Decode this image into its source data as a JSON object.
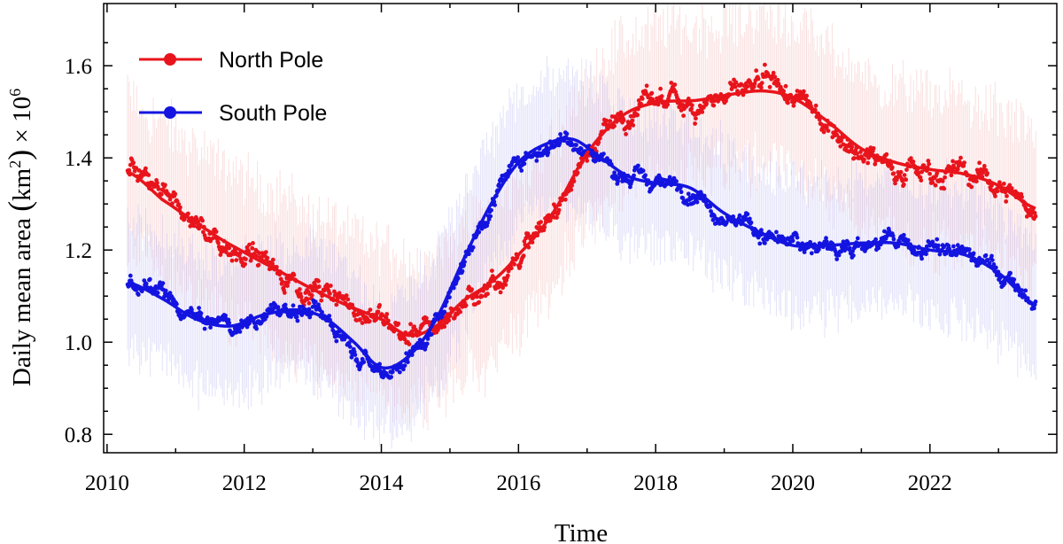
{
  "chart_data": {
    "type": "scatter",
    "title": "",
    "xlabel": "Time",
    "ylabel": {
      "prefix": "Daily mean area ",
      "lparen": "(",
      "unit": "km",
      "unit_sup": "2",
      "rparen": ")",
      "times": " × 10",
      "exp": "6"
    },
    "xlim": [
      2009.95,
      2023.85
    ],
    "ylim": [
      0.76,
      1.735
    ],
    "xticks": [
      2010,
      2012,
      2014,
      2016,
      2018,
      2020,
      2022
    ],
    "yticks": [
      0.8,
      1.0,
      1.2,
      1.4,
      1.6
    ],
    "ytick_labels": [
      "0.8",
      "1.0",
      "1.2",
      "1.4",
      "1.6"
    ],
    "legend_position": "top-left",
    "series": [
      {
        "name": "North Pole",
        "color": "#e8141c",
        "band_color": "#f2a0a0",
        "scatter_spread": 0.045,
        "band_halfwidth": 0.16,
        "smooth_x": [
          2010.3,
          2010.8,
          2011.5,
          2012.0,
          2012.5,
          2013.0,
          2013.5,
          2014.0,
          2014.4,
          2014.8,
          2015.2,
          2015.6,
          2016.0,
          2016.5,
          2017.0,
          2017.5,
          2018.0,
          2018.6,
          2019.2,
          2019.6,
          2020.0,
          2020.5,
          2021.0,
          2021.5,
          2022.0,
          2022.5,
          2023.0,
          2023.55
        ],
        "smooth_y": [
          1.37,
          1.31,
          1.24,
          1.195,
          1.155,
          1.115,
          1.08,
          1.05,
          1.015,
          1.035,
          1.09,
          1.13,
          1.19,
          1.28,
          1.41,
          1.49,
          1.52,
          1.525,
          1.54,
          1.545,
          1.53,
          1.48,
          1.42,
          1.39,
          1.375,
          1.365,
          1.34,
          1.29
        ]
      },
      {
        "name": "South Pole",
        "color": "#1414e0",
        "band_color": "#a8a8f0",
        "scatter_spread": 0.035,
        "band_halfwidth": 0.14,
        "smooth_x": [
          2010.3,
          2010.8,
          2011.3,
          2011.8,
          2012.3,
          2012.8,
          2013.2,
          2013.6,
          2014.0,
          2014.4,
          2014.8,
          2015.2,
          2015.6,
          2016.0,
          2016.4,
          2016.8,
          2017.2,
          2017.6,
          2018.0,
          2018.5,
          2019.0,
          2019.5,
          2020.0,
          2020.5,
          2021.0,
          2021.5,
          2022.0,
          2022.5,
          2023.0,
          2023.55
        ],
        "smooth_y": [
          1.13,
          1.095,
          1.05,
          1.035,
          1.06,
          1.07,
          1.05,
          1.0,
          0.945,
          0.97,
          1.05,
          1.18,
          1.3,
          1.39,
          1.43,
          1.44,
          1.4,
          1.36,
          1.345,
          1.335,
          1.28,
          1.24,
          1.21,
          1.21,
          1.215,
          1.215,
          1.2,
          1.19,
          1.15,
          1.08
        ]
      }
    ]
  }
}
